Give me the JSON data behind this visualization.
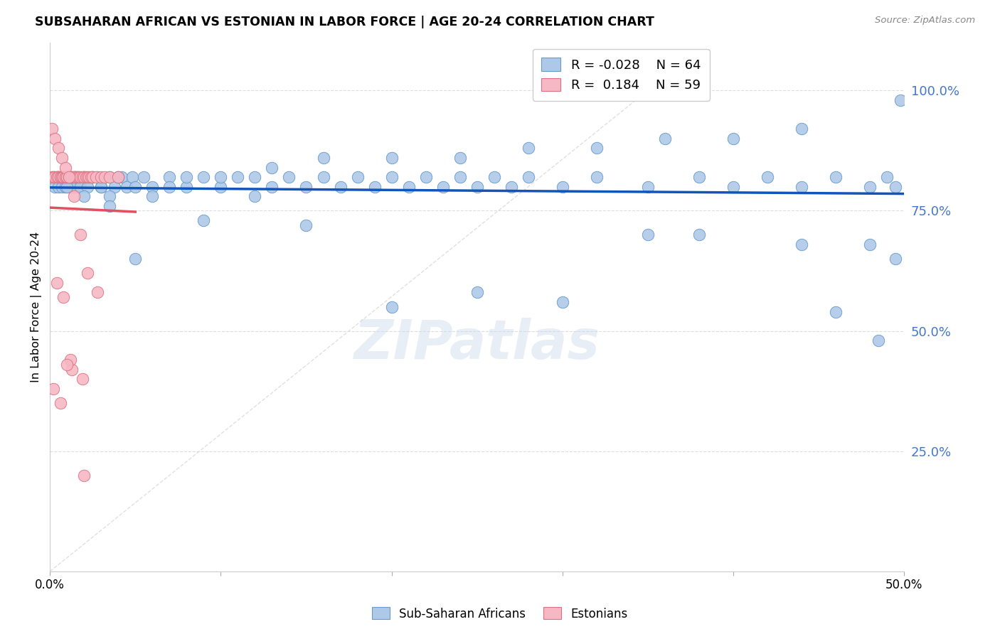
{
  "title": "SUBSAHARAN AFRICAN VS ESTONIAN IN LABOR FORCE | AGE 20-24 CORRELATION CHART",
  "source": "Source: ZipAtlas.com",
  "ylabel": "In Labor Force | Age 20-24",
  "xmin": 0.0,
  "xmax": 0.5,
  "ymin": 0.0,
  "ymax": 1.1,
  "legend_blue_R": "-0.028",
  "legend_blue_N": "64",
  "legend_pink_R": "0.184",
  "legend_pink_N": "59",
  "blue_color": "#aec9e8",
  "blue_edge_color": "#6699cc",
  "blue_line_color": "#1155bb",
  "pink_color": "#f5b8c4",
  "pink_edge_color": "#e07080",
  "pink_line_color": "#e05060",
  "diag_color": "#dddddd",
  "grid_color": "#dddddd",
  "right_tick_color": "#4477cc",
  "watermark": "ZIPatlas",
  "blue_scatter_x": [
    0.002,
    0.003,
    0.004,
    0.005,
    0.006,
    0.007,
    0.008,
    0.009,
    0.01,
    0.011,
    0.012,
    0.013,
    0.014,
    0.015,
    0.016,
    0.018,
    0.02,
    0.022,
    0.025,
    0.028,
    0.03,
    0.035,
    0.038,
    0.04,
    0.042,
    0.045,
    0.048,
    0.05,
    0.055,
    0.06,
    0.07,
    0.08,
    0.09,
    0.1,
    0.11,
    0.12,
    0.13,
    0.14,
    0.15,
    0.16,
    0.17,
    0.18,
    0.19,
    0.2,
    0.21,
    0.22,
    0.23,
    0.24,
    0.25,
    0.26,
    0.27,
    0.28,
    0.3,
    0.32,
    0.35,
    0.38,
    0.4,
    0.42,
    0.44,
    0.46,
    0.48,
    0.49,
    0.495,
    0.498
  ],
  "blue_scatter_y": [
    0.82,
    0.8,
    0.82,
    0.8,
    0.82,
    0.8,
    0.82,
    0.8,
    0.82,
    0.8,
    0.82,
    0.8,
    0.82,
    0.8,
    0.82,
    0.8,
    0.82,
    0.8,
    0.82,
    0.82,
    0.8,
    0.82,
    0.8,
    0.82,
    0.82,
    0.8,
    0.82,
    0.8,
    0.82,
    0.8,
    0.82,
    0.8,
    0.82,
    0.8,
    0.82,
    0.82,
    0.8,
    0.82,
    0.8,
    0.82,
    0.8,
    0.82,
    0.8,
    0.82,
    0.8,
    0.82,
    0.8,
    0.82,
    0.8,
    0.82,
    0.8,
    0.82,
    0.8,
    0.82,
    0.8,
    0.82,
    0.8,
    0.82,
    0.8,
    0.82,
    0.8,
    0.82,
    0.8,
    0.98
  ],
  "blue_scatter_x2": [
    0.005,
    0.01,
    0.015,
    0.02,
    0.025,
    0.03,
    0.035,
    0.04,
    0.06,
    0.08,
    0.1,
    0.13,
    0.16,
    0.2,
    0.24,
    0.28,
    0.32,
    0.36,
    0.4,
    0.44,
    0.48,
    0.38,
    0.44,
    0.46,
    0.485,
    0.495,
    0.3,
    0.35,
    0.25,
    0.2,
    0.15,
    0.12,
    0.09,
    0.07,
    0.05,
    0.035,
    0.02
  ],
  "blue_scatter_y2": [
    0.82,
    0.8,
    0.82,
    0.78,
    0.82,
    0.8,
    0.78,
    0.82,
    0.78,
    0.82,
    0.82,
    0.84,
    0.86,
    0.86,
    0.86,
    0.88,
    0.88,
    0.9,
    0.9,
    0.92,
    0.68,
    0.7,
    0.68,
    0.54,
    0.48,
    0.65,
    0.56,
    0.7,
    0.58,
    0.55,
    0.72,
    0.78,
    0.73,
    0.8,
    0.65,
    0.76,
    0.82
  ],
  "pink_scatter_x": [
    0.001,
    0.002,
    0.003,
    0.004,
    0.005,
    0.005,
    0.006,
    0.006,
    0.007,
    0.007,
    0.008,
    0.008,
    0.009,
    0.009,
    0.01,
    0.01,
    0.011,
    0.011,
    0.012,
    0.012,
    0.013,
    0.013,
    0.014,
    0.015,
    0.015,
    0.016,
    0.017,
    0.018,
    0.019,
    0.02,
    0.021,
    0.022,
    0.023,
    0.024,
    0.025,
    0.027,
    0.03,
    0.032,
    0.035,
    0.04,
    0.001,
    0.003,
    0.005,
    0.007,
    0.009,
    0.011,
    0.014,
    0.018,
    0.022,
    0.028,
    0.004,
    0.008,
    0.013,
    0.019,
    0.002,
    0.006,
    0.012,
    0.02,
    0.01
  ],
  "pink_scatter_y": [
    0.82,
    0.82,
    0.82,
    0.82,
    0.82,
    0.82,
    0.82,
    0.82,
    0.82,
    0.82,
    0.82,
    0.82,
    0.82,
    0.82,
    0.82,
    0.82,
    0.82,
    0.82,
    0.82,
    0.82,
    0.82,
    0.82,
    0.82,
    0.82,
    0.82,
    0.82,
    0.82,
    0.82,
    0.82,
    0.82,
    0.82,
    0.82,
    0.82,
    0.82,
    0.82,
    0.82,
    0.82,
    0.82,
    0.82,
    0.82,
    0.92,
    0.9,
    0.88,
    0.86,
    0.84,
    0.82,
    0.78,
    0.7,
    0.62,
    0.58,
    0.6,
    0.57,
    0.42,
    0.4,
    0.38,
    0.35,
    0.44,
    0.2,
    0.43
  ]
}
